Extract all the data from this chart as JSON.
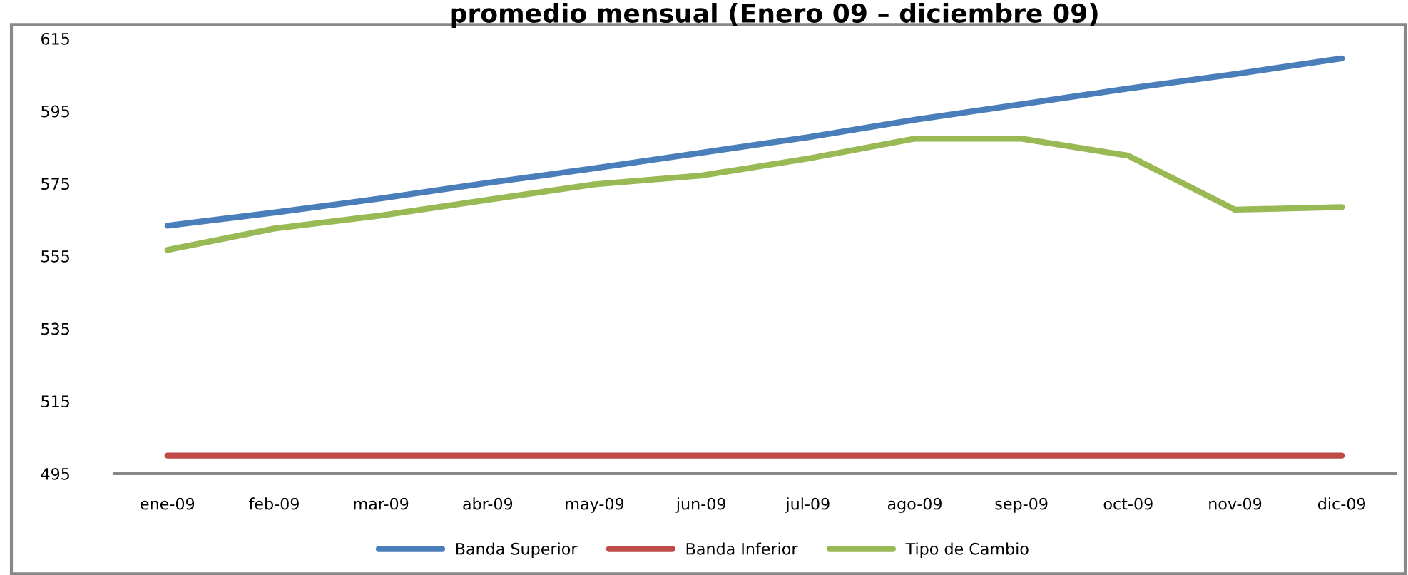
{
  "chart_data": {
    "type": "line",
    "title": "promedio mensual (Enero 09 – diciembre 09)",
    "categories": [
      "ene-09",
      "feb-09",
      "mar-09",
      "abr-09",
      "may-09",
      "jun-09",
      "jul-09",
      "ago-09",
      "sep-09",
      "oct-09",
      "nov-09",
      "dic-09"
    ],
    "series": [
      {
        "name": "Banda Superior",
        "color": "#4a7ebb",
        "values": [
          563.4,
          567.0,
          570.9,
          575.2,
          579.2,
          583.5,
          587.8,
          592.6,
          596.9,
          601.2,
          605.2,
          609.5
        ]
      },
      {
        "name": "Banda Inferior",
        "color": "#be4b48",
        "values": [
          500,
          500,
          500,
          500,
          500,
          500,
          500,
          500,
          500,
          500,
          500,
          500
        ]
      },
      {
        "name": "Tipo de Cambio",
        "color": "#98b954",
        "values": [
          556.7,
          562.6,
          566.2,
          570.5,
          574.8,
          577.2,
          581.9,
          587.4,
          587.4,
          582.7,
          567.8,
          568.5
        ]
      }
    ],
    "ylim": [
      495,
      615
    ],
    "yticks": [
      495,
      515,
      535,
      555,
      575,
      595,
      615
    ],
    "grid": false,
    "legend": "bottom",
    "marker": "none",
    "line_style": "solid"
  }
}
